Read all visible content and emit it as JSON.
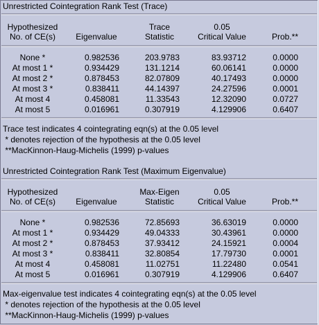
{
  "sections": [
    {
      "title": "Unrestricted Cointegration Rank Test (Trace)",
      "columns": [
        {
          "lines": [
            "Hypothesized",
            "No. of CE(s)"
          ]
        },
        {
          "lines": [
            "Eigenvalue"
          ]
        },
        {
          "lines": [
            "Trace",
            "Statistic"
          ]
        },
        {
          "lines": [
            "0.05",
            "Critical Value"
          ]
        },
        {
          "lines": [
            "Prob.**"
          ]
        }
      ],
      "rows": [
        [
          "None *",
          "0.982536",
          "203.9783",
          "83.93712",
          "0.0000"
        ],
        [
          "At most 1 *",
          "0.934429",
          "131.1214",
          "60.06141",
          "0.0000"
        ],
        [
          "At most 2 *",
          "0.878453",
          "82.07809",
          "40.17493",
          "0.0000"
        ],
        [
          "At most 3 *",
          "0.838411",
          "44.14397",
          "24.27596",
          "0.0001"
        ],
        [
          "At most 4",
          "0.458081",
          "11.33543",
          "12.32090",
          "0.0727"
        ],
        [
          "At most 5",
          "0.016961",
          "0.307919",
          "4.129906",
          "0.6407"
        ]
      ],
      "notes": [
        "Trace test indicates 4 cointegrating eqn(s) at the 0.05 level",
        " * denotes rejection of the hypothesis at the 0.05 level",
        " **MacKinnon-Haug-Michelis (1999) p-values"
      ]
    },
    {
      "title": "Unrestricted Cointegration Rank Test (Maximum Eigenvalue)",
      "columns": [
        {
          "lines": [
            "Hypothesized",
            "No. of CE(s)"
          ]
        },
        {
          "lines": [
            "Eigenvalue"
          ]
        },
        {
          "lines": [
            "Max-Eigen",
            "Statistic"
          ]
        },
        {
          "lines": [
            "0.05",
            "Critical Value"
          ]
        },
        {
          "lines": [
            "Prob.**"
          ]
        }
      ],
      "rows": [
        [
          "None *",
          "0.982536",
          "72.85693",
          "36.63019",
          "0.0000"
        ],
        [
          "At most 1 *",
          "0.934429",
          "49.04333",
          "30.43961",
          "0.0000"
        ],
        [
          "At most 2 *",
          "0.878453",
          "37.93412",
          "24.15921",
          "0.0004"
        ],
        [
          "At most 3 *",
          "0.838411",
          "32.80854",
          "17.79730",
          "0.0001"
        ],
        [
          "At most 4",
          "0.458081",
          "11.02751",
          "11.22480",
          "0.0541"
        ],
        [
          "At most 5",
          "0.016961",
          "0.307919",
          "4.129906",
          "0.6407"
        ]
      ],
      "notes": [
        "Max-eigenvalue test indicates 4 cointegrating eqn(s) at the 0.05 level",
        " * denotes rejection of the hypothesis at the 0.05 level",
        " **MacKinnon-Haug-Michelis (1999) p-values"
      ]
    }
  ]
}
